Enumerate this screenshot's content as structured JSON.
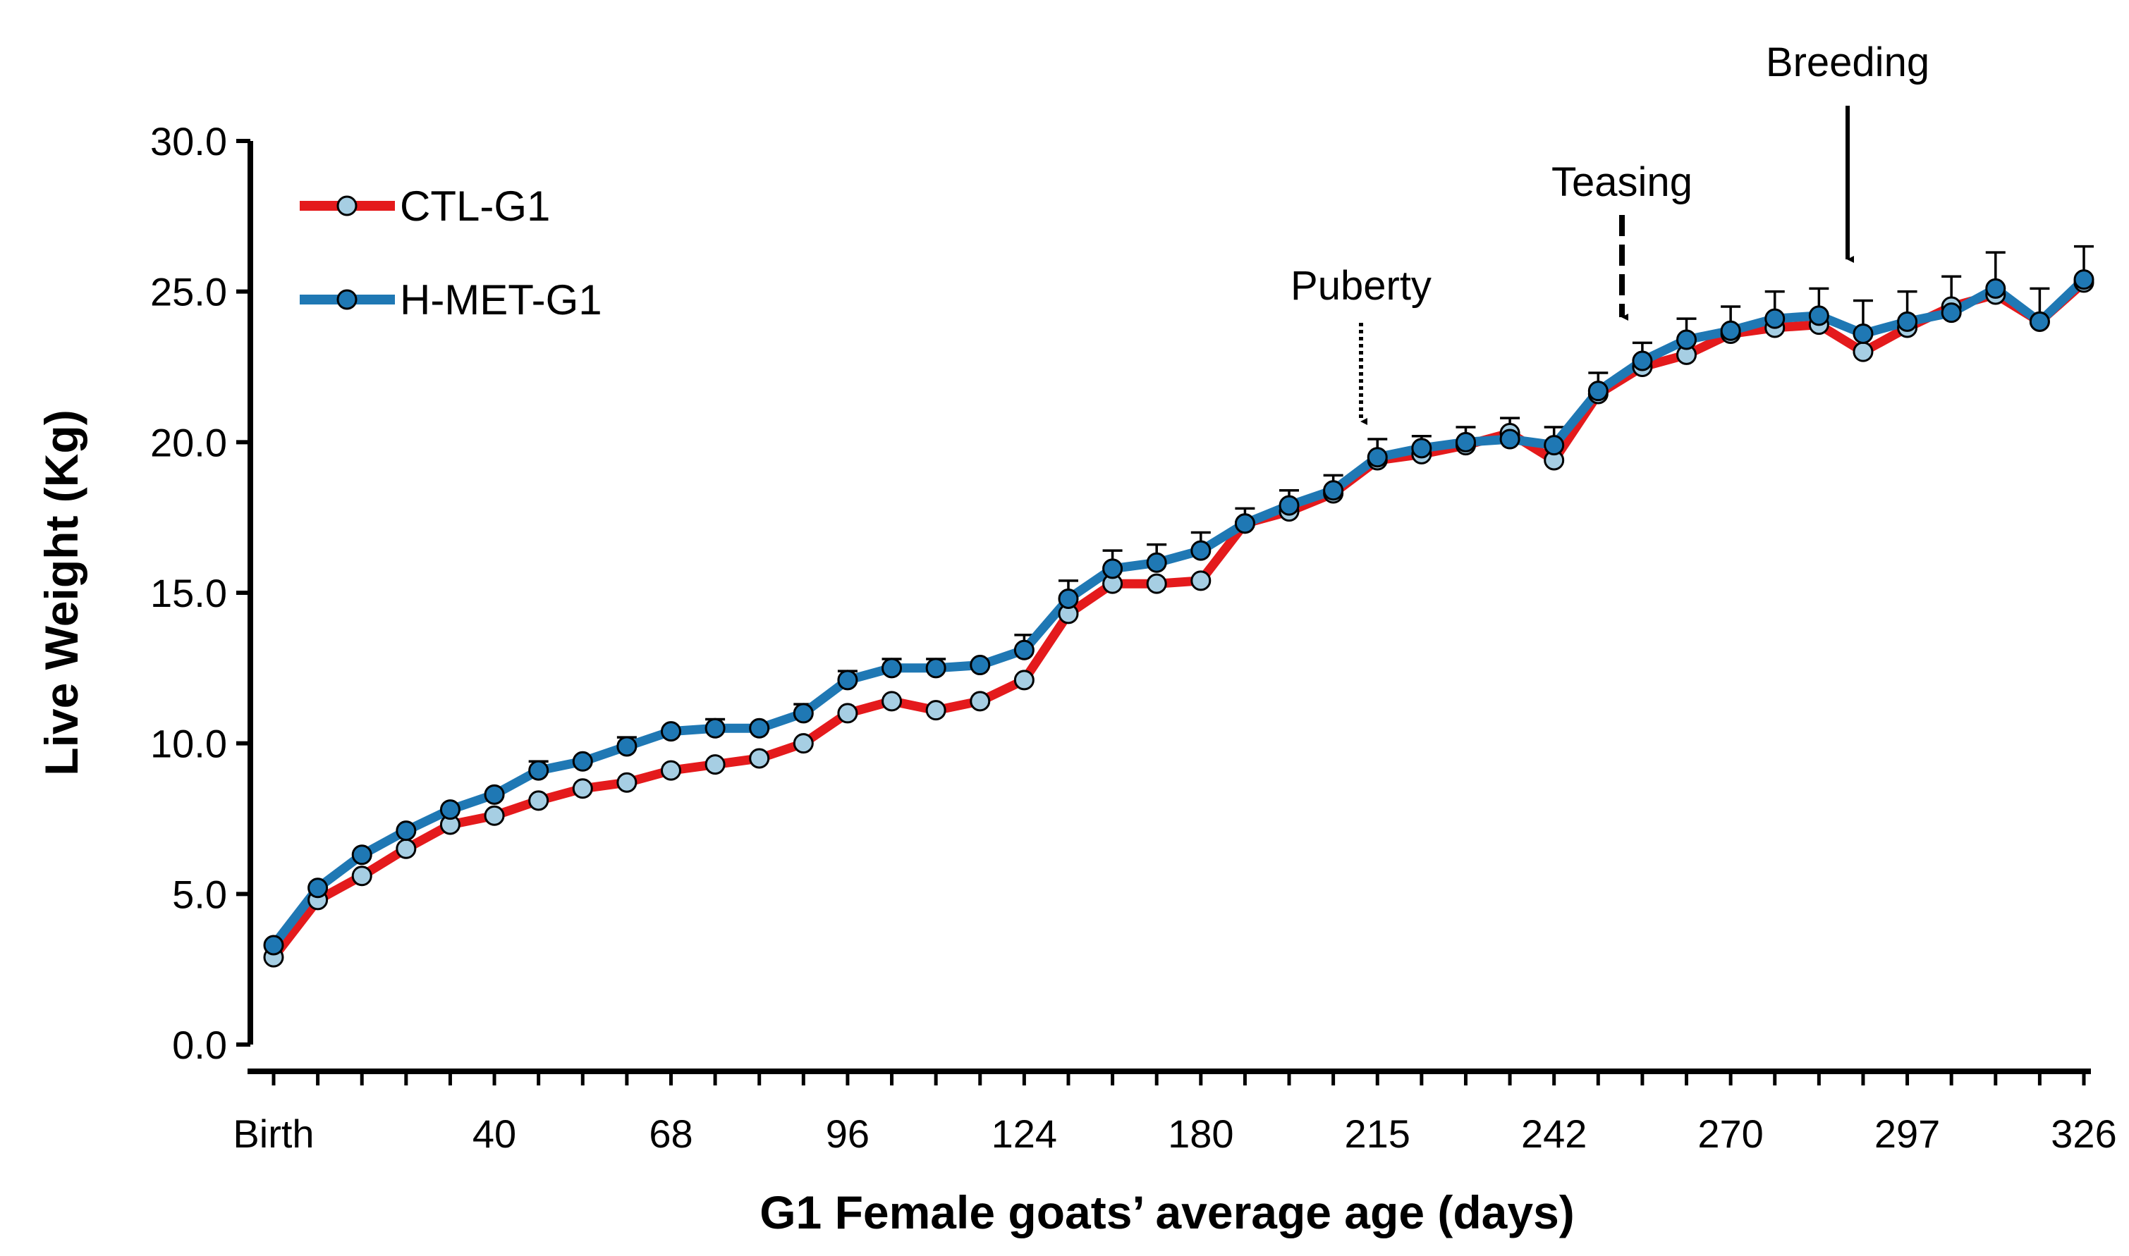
{
  "chart_data": {
    "type": "line",
    "title": "",
    "xlabel": "G1 Female goats’ average age (days)",
    "ylabel": "Live Weight (Kg)",
    "ylim": [
      0,
      30
    ],
    "y_ticks": [
      "0.0",
      "5.0",
      "10.0",
      "15.0",
      "20.0",
      "25.0",
      "30.0"
    ],
    "x_tick_labels": [
      {
        "index": 0,
        "label": "Birth"
      },
      {
        "index": 5,
        "label": "40"
      },
      {
        "index": 9,
        "label": "68"
      },
      {
        "index": 13,
        "label": "96"
      },
      {
        "index": 17,
        "label": "124"
      },
      {
        "index": 21,
        "label": "180"
      },
      {
        "index": 25,
        "label": "215"
      },
      {
        "index": 29,
        "label": "242"
      },
      {
        "index": 33,
        "label": "270"
      },
      {
        "index": 37,
        "label": "297"
      },
      {
        "index": 41,
        "label": "326"
      }
    ],
    "n_points": 42,
    "legend": {
      "position": "top-left"
    },
    "series": [
      {
        "name": "CTL-G1",
        "line_color": "#e41a1c",
        "marker_color": "#a6cee3",
        "values": [
          2.9,
          4.8,
          5.6,
          6.5,
          7.3,
          7.6,
          8.1,
          8.5,
          8.7,
          9.1,
          9.3,
          9.5,
          10.0,
          11.0,
          11.4,
          11.1,
          11.4,
          12.1,
          14.3,
          15.3,
          15.3,
          15.4,
          17.3,
          17.7,
          18.3,
          19.4,
          19.6,
          19.9,
          20.3,
          19.4,
          21.6,
          22.5,
          22.9,
          23.6,
          23.8,
          23.9,
          23.0,
          23.8,
          24.5,
          24.9,
          24.0,
          25.3
        ]
      },
      {
        "name": "H-MET-G1",
        "line_color": "#1f78b4",
        "marker_color": "#1f78b4",
        "values": [
          3.3,
          5.2,
          6.3,
          7.1,
          7.8,
          8.3,
          9.1,
          9.4,
          9.9,
          10.4,
          10.5,
          10.5,
          11.0,
          12.1,
          12.5,
          12.5,
          12.6,
          13.1,
          14.8,
          15.8,
          16.0,
          16.4,
          17.3,
          17.9,
          18.4,
          19.5,
          19.8,
          20.0,
          20.1,
          19.9,
          21.7,
          22.7,
          23.4,
          23.7,
          24.1,
          24.2,
          23.6,
          24.0,
          24.3,
          25.1,
          24.0,
          25.4
        ]
      }
    ],
    "errors": [
      0,
      0,
      0,
      0,
      0,
      0,
      0.3,
      0,
      0.3,
      0,
      0.3,
      0,
      0.3,
      0.3,
      0.3,
      0.3,
      0,
      0.5,
      0.6,
      0.6,
      0.6,
      0.6,
      0.5,
      0.5,
      0.5,
      0.6,
      0.4,
      0.5,
      0.5,
      0.6,
      0.6,
      0.6,
      0.7,
      0.8,
      0.9,
      0.9,
      1.1,
      1.0,
      1.0,
      1.2,
      1.1,
      1.1
    ],
    "annotations": [
      {
        "label": "Puberty",
        "index": 25,
        "style": "dotted"
      },
      {
        "label": "Teasing",
        "index": 31,
        "style": "dashed"
      },
      {
        "label": "Breeding",
        "index": 36,
        "style": "solid"
      }
    ]
  }
}
